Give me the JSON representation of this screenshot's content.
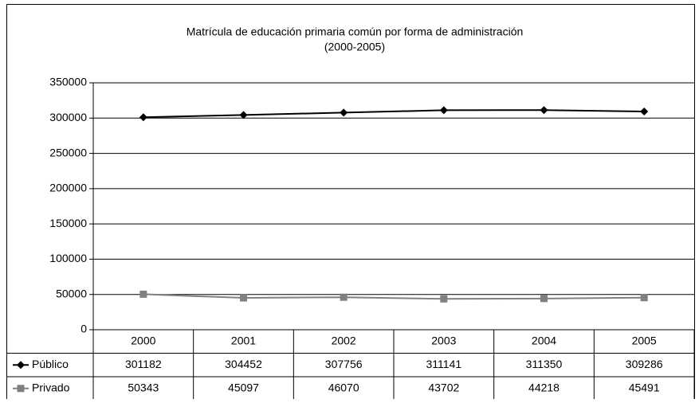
{
  "chart_data": {
    "type": "line",
    "title": "Matrícula de educación primaria común por forma de administración",
    "subtitle": "(2000-2005)",
    "categories": [
      "2000",
      "2001",
      "2002",
      "2003",
      "2004",
      "2005"
    ],
    "series": [
      {
        "name": "Público",
        "color": "#000000",
        "marker": "diamond",
        "values": [
          301182,
          304452,
          307756,
          311141,
          311350,
          309286
        ]
      },
      {
        "name": "Privado",
        "color": "#808080",
        "marker": "square",
        "values": [
          50343,
          45097,
          46070,
          43702,
          44218,
          45491
        ]
      }
    ],
    "ylim": [
      0,
      350000
    ],
    "yticks": [
      0,
      50000,
      100000,
      150000,
      200000,
      250000,
      300000,
      350000
    ],
    "grid": true
  }
}
